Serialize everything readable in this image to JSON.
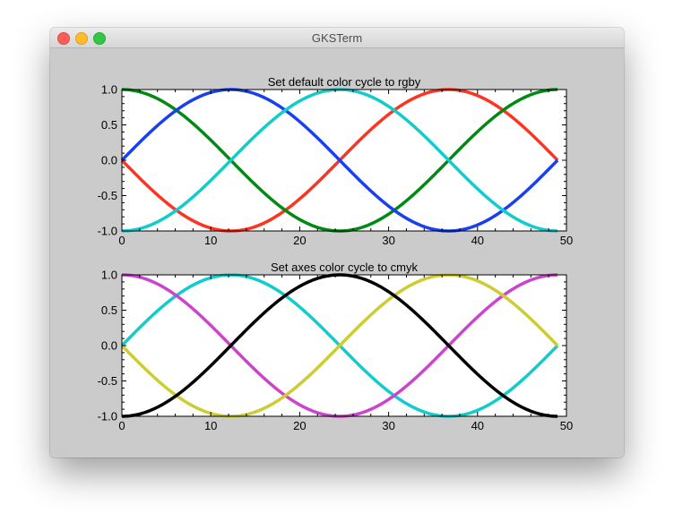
{
  "window": {
    "title": "GKSTerm"
  },
  "chart_data": [
    {
      "type": "line",
      "title": "Set default color cycle to rgby",
      "xlim": [
        0,
        50
      ],
      "ylim": [
        -1.0,
        1.0
      ],
      "xticks": [
        "0",
        "10",
        "20",
        "30",
        "40",
        "50"
      ],
      "yticks": [
        "1.0",
        "0.5",
        "0.0",
        "-0.5",
        "-1.0"
      ],
      "grid": false,
      "x_range": [
        0,
        49
      ],
      "series": [
        {
          "curve": "-sin(2*pi*x/49)",
          "color": "#ff3322",
          "values_at_x": {
            "0": 0.0,
            "12.25": -1.0,
            "24.5": 0.0,
            "36.75": 1.0,
            "49": 0.0
          }
        },
        {
          "curve": "cos(2*pi*x/49)",
          "color": "#008a14",
          "values_at_x": {
            "0": 1.0,
            "12.25": 0.0,
            "24.5": -1.0,
            "36.75": 0.0,
            "49": 1.0
          }
        },
        {
          "curve": "sin(2*pi*x/49)",
          "color": "#1a3ff0",
          "values_at_x": {
            "0": 0.0,
            "12.25": 1.0,
            "24.5": 0.0,
            "36.75": -1.0,
            "49": 0.0
          }
        },
        {
          "curve": "-cos(2*pi*x/49)",
          "color": "#11cccc",
          "values_at_x": {
            "0": -1.0,
            "12.25": 0.0,
            "24.5": 1.0,
            "36.75": 0.0,
            "49": -1.0
          }
        }
      ]
    },
    {
      "type": "line",
      "title": "Set axes color cycle to cmyk",
      "xlim": [
        0,
        50
      ],
      "ylim": [
        -1.0,
        1.0
      ],
      "xticks": [
        "0",
        "10",
        "20",
        "30",
        "40",
        "50"
      ],
      "yticks": [
        "1.0",
        "0.5",
        "0.0",
        "-0.5",
        "-1.0"
      ],
      "grid": false,
      "x_range": [
        0,
        49
      ],
      "series": [
        {
          "curve": "sin(2*pi*x/49)",
          "color": "#11cccc",
          "values_at_x": {
            "0": 0.0,
            "12.25": 1.0,
            "24.5": 0.0,
            "36.75": -1.0,
            "49": 0.0
          }
        },
        {
          "curve": "cos(2*pi*x/49)",
          "color": "#cc44cc",
          "values_at_x": {
            "0": 1.0,
            "12.25": 0.0,
            "24.5": -1.0,
            "36.75": 0.0,
            "49": 1.0
          }
        },
        {
          "curve": "-sin(2*pi*x/49)",
          "color": "#cccc33",
          "values_at_x": {
            "0": 0.0,
            "12.25": -1.0,
            "24.5": 0.0,
            "36.75": 1.0,
            "49": 0.0
          }
        },
        {
          "curve": "-cos(2*pi*x/49)",
          "color": "#000000",
          "values_at_x": {
            "0": -1.0,
            "12.25": 0.0,
            "24.5": 1.0,
            "36.75": 0.0,
            "49": -1.0
          }
        }
      ]
    }
  ]
}
